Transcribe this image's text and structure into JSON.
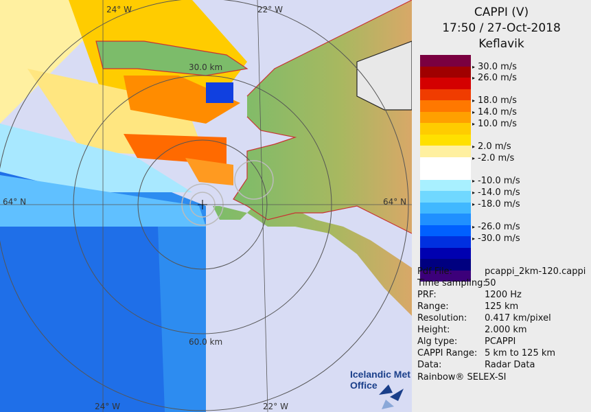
{
  "header": {
    "title_line1": "CAPPI (V)",
    "title_line2": "17:50 / 27-Oct-2018",
    "title_line3": "Keflavik"
  },
  "legend": {
    "colors": [
      "#7a0040",
      "#a00000",
      "#d40000",
      "#f03c00",
      "#ff7800",
      "#ffa000",
      "#ffcc00",
      "#ffe000",
      "#fff0a0",
      "#ffffff",
      "#ffffff",
      "#a8f0ff",
      "#70d8ff",
      "#40b8ff",
      "#2090ff",
      "#0060ff",
      "#0030e0",
      "#0000b0",
      "#000080",
      "#3c007a"
    ],
    "labels": [
      "30.0 m/s",
      "26.0 m/s",
      "18.0 m/s",
      "14.0 m/s",
      "10.0 m/s",
      "2.0 m/s",
      "-2.0 m/s",
      "-10.0 m/s",
      "-14.0 m/s",
      "-18.0 m/s",
      "-26.0 m/s",
      "-30.0 m/s"
    ]
  },
  "info": {
    "rows": [
      {
        "key": "Pdf File:",
        "value": "pcappi_2km-120.cappi"
      },
      {
        "key": "Time sampling:",
        "value": "50"
      },
      {
        "key": "PRF:",
        "value": "1200 Hz"
      },
      {
        "key": "Range:",
        "value": "125 km"
      },
      {
        "key": "Resolution:",
        "value": "0.417 km/pixel"
      },
      {
        "key": "Height:",
        "value": "2.000 km"
      },
      {
        "key": "Alg type:",
        "value": "PCAPPI"
      },
      {
        "key": "CAPPI Range:",
        "value": "5 km to 125 km"
      },
      {
        "key": "Data:",
        "value": "Radar Data"
      }
    ],
    "footer": "Rainbow® SELEX-SI"
  },
  "map": {
    "lon_top_left": "24° W",
    "lon_top_right": "22° W",
    "lon_bottom_left": "24° W",
    "lon_bottom_right": "22° W",
    "lat_left": "64° N",
    "lat_right": "64° N",
    "ring_inner": "30.0 km",
    "ring_outer": "60.0 km",
    "logo_line1": "Icelandic Met",
    "logo_line2": "Office"
  }
}
